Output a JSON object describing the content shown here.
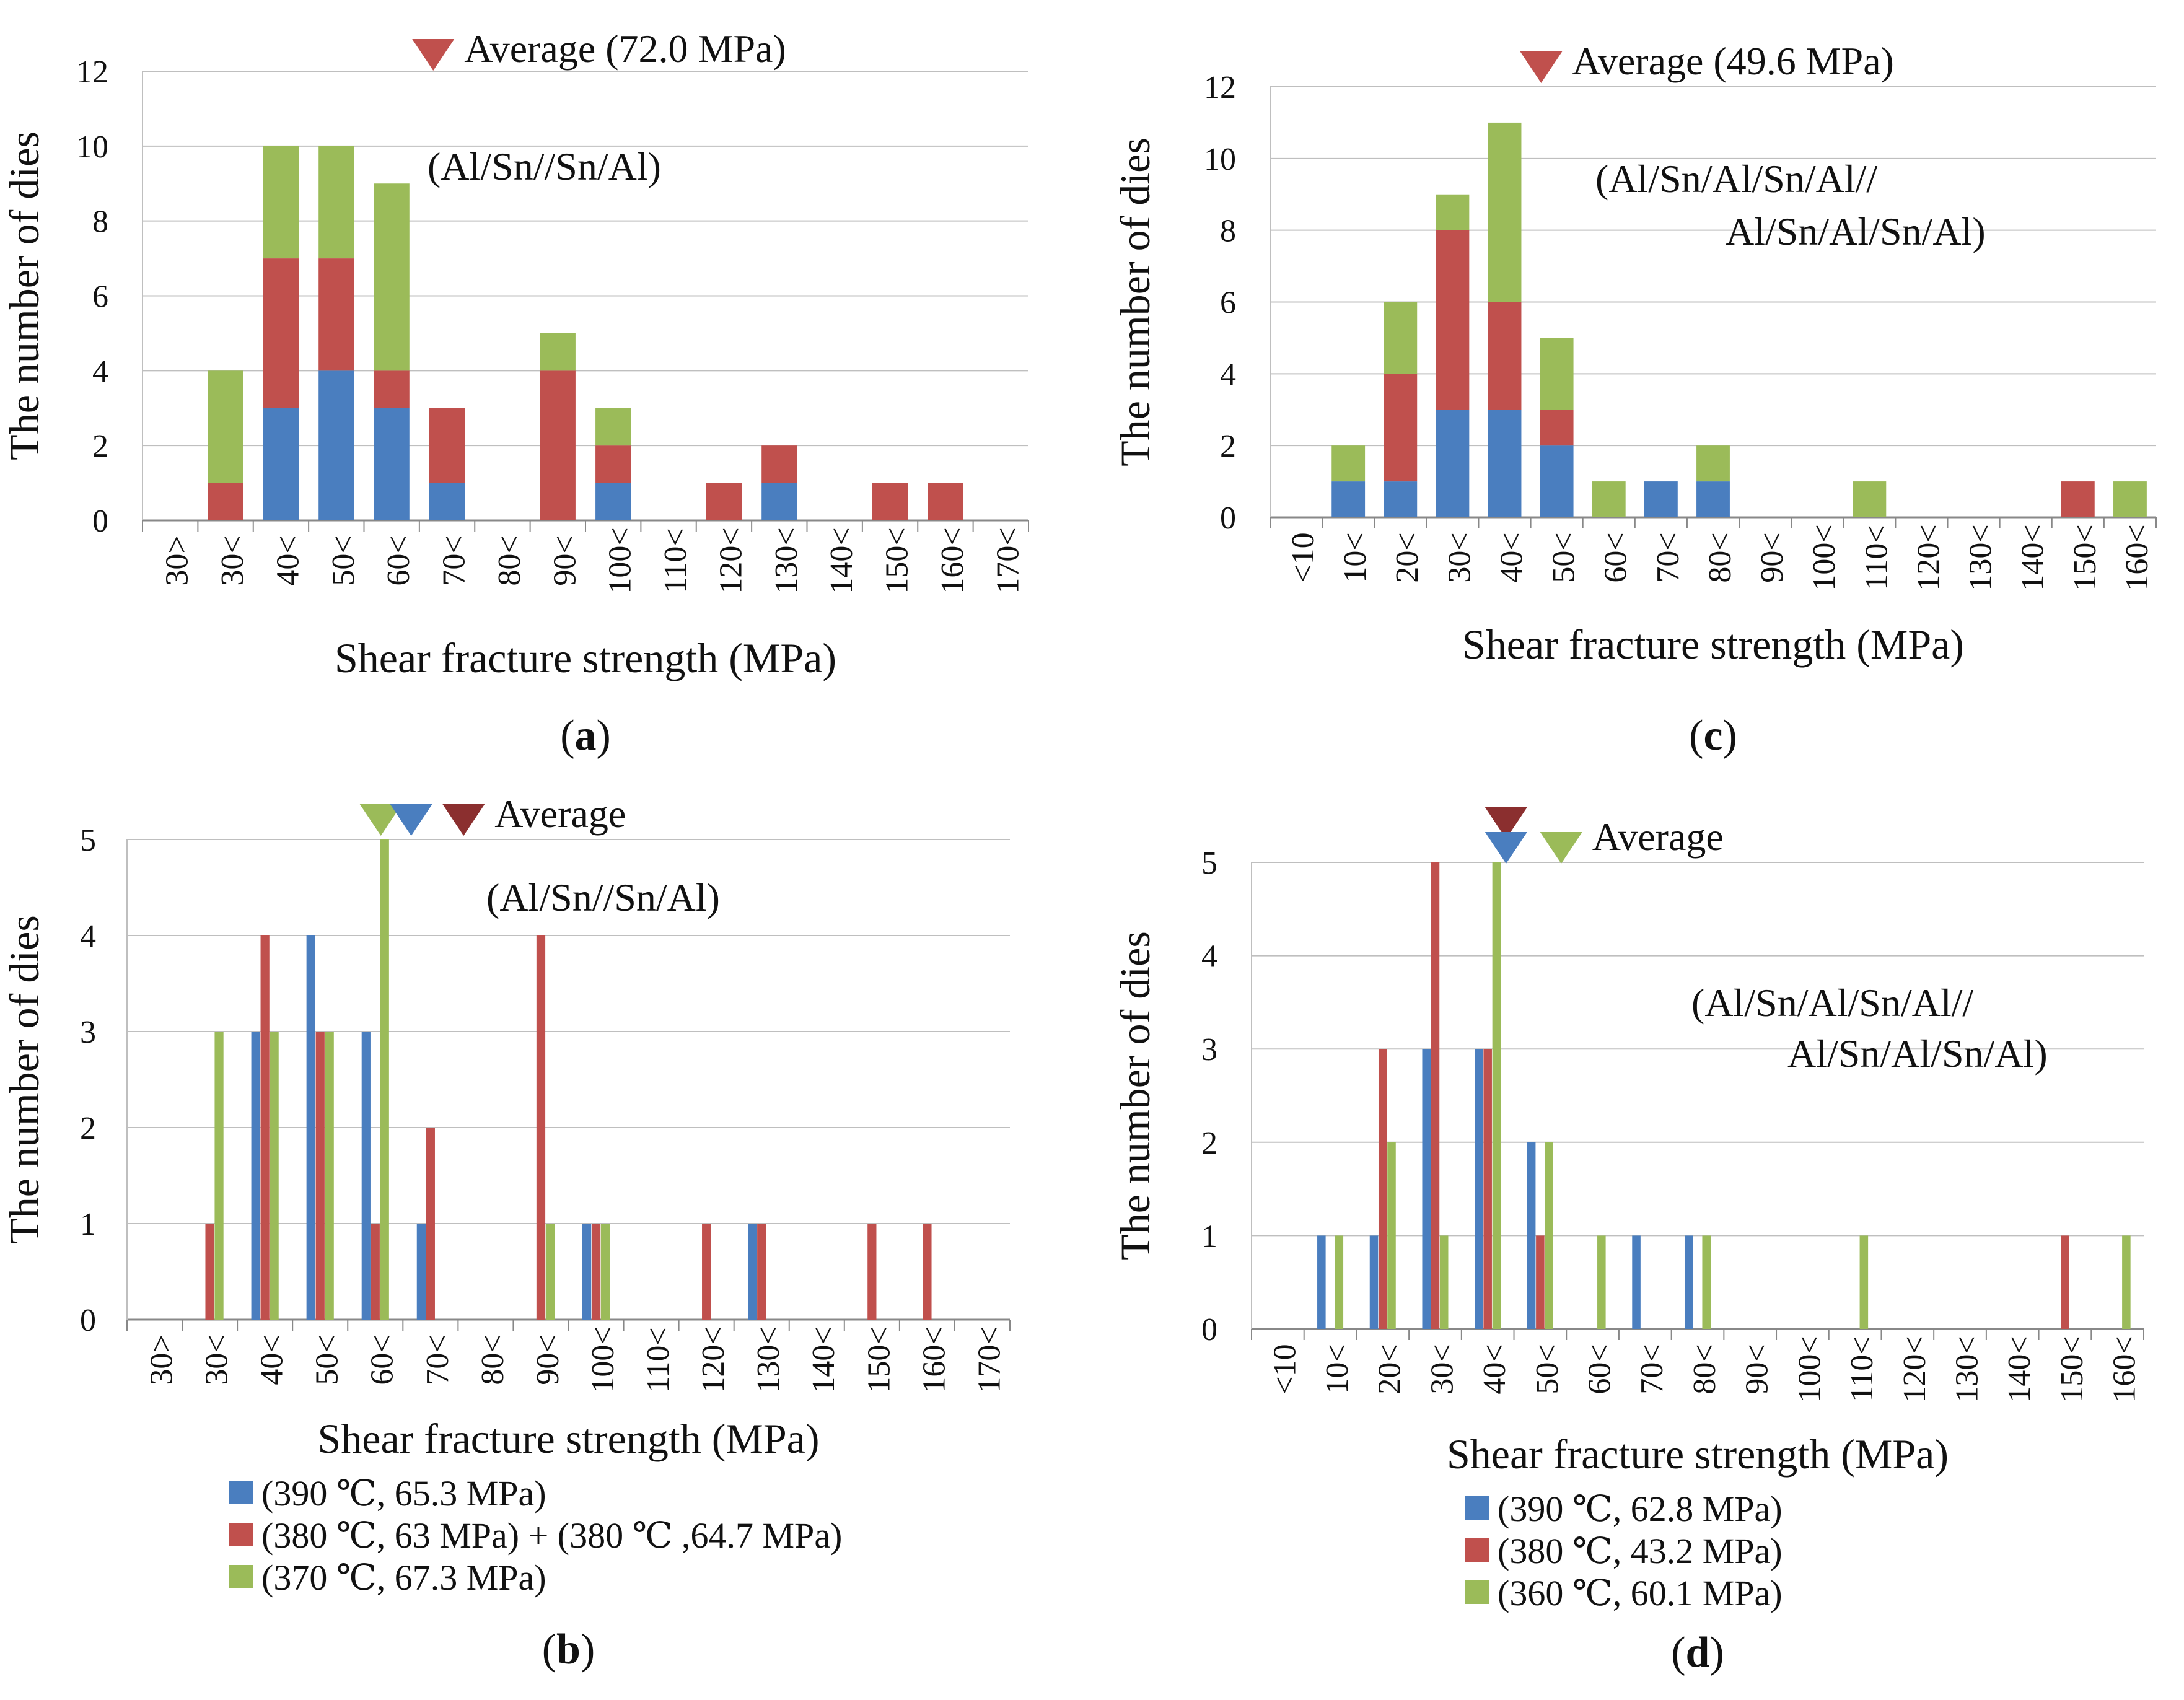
{
  "colors": {
    "blue": "#4a7ebf",
    "red": "#c0504d",
    "green": "#9bbb59",
    "darkred": "#8b2f2f",
    "grid": "#bfbfbf",
    "axis": "#888888"
  },
  "chart_data": [
    {
      "id": "a",
      "type": "bar",
      "stacked": true,
      "panel_label": "a",
      "title": "",
      "xlabel": "Shear fracture strength (MPa)",
      "ylabel": "The number of dies",
      "ylim": [
        0,
        12
      ],
      "yticks": [
        "0",
        "2",
        "4",
        "6",
        "8",
        "10",
        "12"
      ],
      "categories": [
        "30>",
        "30<",
        "40<",
        "50<",
        "60<",
        "70<",
        "80<",
        "90<",
        "100<",
        "110<",
        "120<",
        "130<",
        "140<",
        "150<",
        "160<",
        "170<"
      ],
      "series": [
        {
          "name": "blue",
          "color": "blue",
          "values": [
            0,
            0,
            3,
            4,
            3,
            1,
            0,
            0,
            1,
            0,
            0,
            1,
            0,
            0,
            0,
            0
          ]
        },
        {
          "name": "red",
          "color": "red",
          "values": [
            0,
            1,
            4,
            3,
            1,
            2,
            0,
            4,
            1,
            0,
            1,
            1,
            0,
            1,
            1,
            0
          ]
        },
        {
          "name": "green",
          "color": "green",
          "values": [
            0,
            3,
            3,
            3,
            5,
            0,
            0,
            1,
            1,
            0,
            0,
            0,
            0,
            0,
            0,
            0
          ]
        }
      ],
      "annotations": [
        {
          "text": "(Al/Sn//Sn/Al)"
        }
      ],
      "average": {
        "label": "Average (72.0 MPa)",
        "markers": [
          {
            "color": "red",
            "pos": 5.25
          }
        ]
      },
      "legend": []
    },
    {
      "id": "b",
      "type": "bar",
      "stacked": false,
      "panel_label": "b",
      "title": "",
      "xlabel": "Shear fracture strength (MPa)",
      "ylabel": "The number of dies",
      "ylim": [
        0,
        5
      ],
      "yticks": [
        "0",
        "1",
        "2",
        "3",
        "4",
        "5"
      ],
      "categories": [
        "30>",
        "30<",
        "40<",
        "50<",
        "60<",
        "70<",
        "80<",
        "90<",
        "100<",
        "110<",
        "120<",
        "130<",
        "140<",
        "150<",
        "160<",
        "170<"
      ],
      "series": [
        {
          "name": "(390 ℃, 65.3 MPa)",
          "color": "blue",
          "values": [
            0,
            0,
            3,
            4,
            3,
            1,
            0,
            0,
            1,
            0,
            0,
            1,
            0,
            0,
            0,
            0
          ]
        },
        {
          "name": "(380 ℃, 63 MPa) + (380 ℃ ,64.7 MPa)",
          "color": "red",
          "values": [
            0,
            1,
            4,
            3,
            1,
            2,
            0,
            4,
            1,
            0,
            1,
            1,
            0,
            1,
            1,
            0
          ]
        },
        {
          "name": "(370 ℃, 67.3 MPa)",
          "color": "green",
          "values": [
            0,
            3,
            3,
            3,
            5,
            0,
            0,
            1,
            1,
            0,
            0,
            0,
            0,
            0,
            0,
            0
          ]
        }
      ],
      "annotations": [
        {
          "text": "(Al/Sn//Sn/Al)"
        }
      ],
      "average": {
        "label": "Average",
        "markers": [
          {
            "color": "green",
            "pos": 4.6
          },
          {
            "color": "blue",
            "pos": 5.15
          },
          {
            "color": "darkred",
            "pos": 6.1
          }
        ]
      },
      "legend": [
        {
          "label": "(390 ℃, 65.3 MPa)",
          "color": "blue"
        },
        {
          "label": "(380 ℃, 63 MPa) + (380 ℃ ,64.7 MPa)",
          "color": "red"
        },
        {
          "label": "(370 ℃, 67.3 MPa)",
          "color": "green"
        }
      ]
    },
    {
      "id": "c",
      "type": "bar",
      "stacked": true,
      "panel_label": "c",
      "title": "",
      "xlabel": "Shear fracture strength (MPa)",
      "ylabel": "The number of dies",
      "ylim": [
        0,
        12
      ],
      "yticks": [
        "0",
        "2",
        "4",
        "6",
        "8",
        "10",
        "12"
      ],
      "categories": [
        "<10",
        "10<",
        "20<",
        "30<",
        "40<",
        "50<",
        "60<",
        "70<",
        "80<",
        "90<",
        "100<",
        "110<",
        "120<",
        "130<",
        "140<",
        "150<",
        "160<"
      ],
      "series": [
        {
          "name": "blue",
          "color": "blue",
          "values": [
            0,
            1,
            1,
            3,
            3,
            2,
            0,
            1,
            1,
            0,
            0,
            0,
            0,
            0,
            0,
            0,
            0
          ]
        },
        {
          "name": "red",
          "color": "red",
          "values": [
            0,
            0,
            3,
            5,
            3,
            1,
            0,
            0,
            0,
            0,
            0,
            0,
            0,
            0,
            0,
            1,
            0
          ]
        },
        {
          "name": "green",
          "color": "green",
          "values": [
            0,
            1,
            2,
            1,
            5,
            2,
            1,
            0,
            1,
            0,
            0,
            1,
            0,
            0,
            0,
            0,
            1
          ]
        }
      ],
      "annotations": [
        {
          "text": "(Al/Sn/Al/Sn/Al//"
        },
        {
          "text": "Al/Sn/Al/Sn/Al)"
        }
      ],
      "average": {
        "label": "Average (49.6 MPa)",
        "markers": [
          {
            "color": "red",
            "pos": 5.2
          }
        ]
      },
      "legend": []
    },
    {
      "id": "d",
      "type": "bar",
      "stacked": false,
      "panel_label": "d",
      "title": "",
      "xlabel": "Shear fracture strength (MPa)",
      "ylabel": "The number of dies",
      "ylim": [
        0,
        5
      ],
      "yticks": [
        "0",
        "1",
        "2",
        "3",
        "4",
        "5"
      ],
      "categories": [
        "<10",
        "10<",
        "20<",
        "30<",
        "40<",
        "50<",
        "60<",
        "70<",
        "80<",
        "90<",
        "100<",
        "110<",
        "120<",
        "130<",
        "140<",
        "150<",
        "160<"
      ],
      "series": [
        {
          "name": "(390 ℃, 62.8 MPa)",
          "color": "blue",
          "values": [
            0,
            1,
            1,
            3,
            3,
            2,
            0,
            1,
            1,
            0,
            0,
            0,
            0,
            0,
            0,
            0,
            0
          ]
        },
        {
          "name": "(380 ℃, 43.2 MPa)",
          "color": "red",
          "values": [
            0,
            0,
            3,
            5,
            3,
            1,
            0,
            0,
            0,
            0,
            0,
            0,
            0,
            0,
            0,
            1,
            0
          ]
        },
        {
          "name": "(360 ℃, 60.1 MPa)",
          "color": "green",
          "values": [
            0,
            1,
            2,
            1,
            5,
            2,
            1,
            0,
            1,
            0,
            0,
            1,
            0,
            0,
            0,
            0,
            1
          ]
        }
      ],
      "annotations": [
        {
          "text": "(Al/Sn/Al/Sn/Al//"
        },
        {
          "text": "Al/Sn/Al/Sn/Al)"
        }
      ],
      "average": {
        "label": "Average",
        "markers": [
          {
            "color": "darkred",
            "pos": 4.85
          },
          {
            "color": "blue",
            "pos": 4.85
          },
          {
            "color": "green",
            "pos": 5.9
          }
        ]
      },
      "legend": [
        {
          "label": "(390 ℃, 62.8 MPa)",
          "color": "blue"
        },
        {
          "label": "(380 ℃, 43.2 MPa)",
          "color": "red"
        },
        {
          "label": "(360 ℃, 60.1 MPa)",
          "color": "green"
        }
      ]
    }
  ]
}
